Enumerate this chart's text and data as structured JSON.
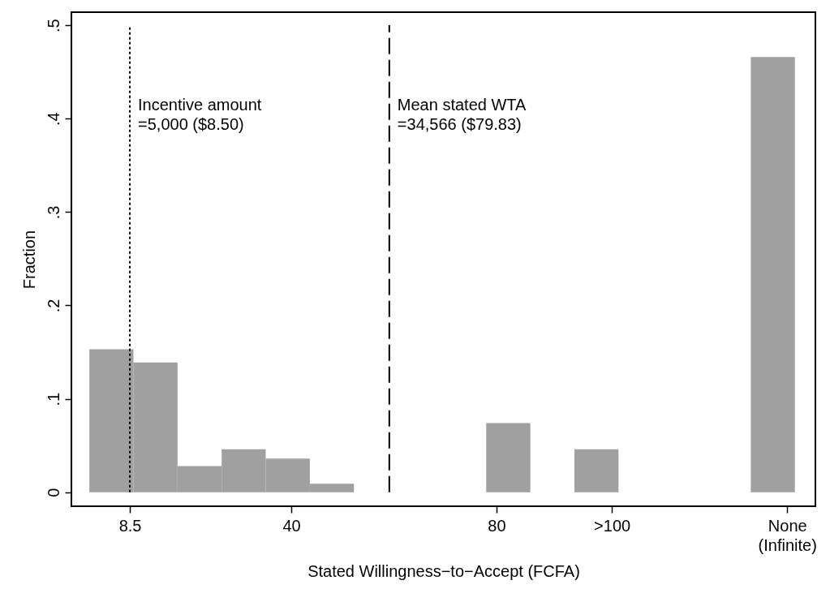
{
  "chart_data": {
    "type": "histogram",
    "xlabel": "Stated Willingness−to−Accept (FCFA)",
    "ylabel": "Fraction",
    "color": "#a0a0a0",
    "bins": [
      0.6,
      9.2,
      17.8,
      26.4,
      35,
      43.6,
      52.2,
      60.8,
      69.4,
      78,
      86.6,
      95.2,
      103.8,
      112.4,
      121,
      129.6,
      138.2
    ],
    "values": [
      0.153,
      0.139,
      0.028,
      0.046,
      0.036,
      0.009,
      0,
      0,
      0,
      0.074,
      0,
      0.046,
      0,
      0,
      0,
      0.466
    ],
    "xlim": [
      -2.9,
      142.2
    ],
    "ylim": [
      -0.015,
      0.514
    ],
    "xticks": [
      8.5,
      40,
      80,
      {
        "value": 102.5,
        "label": ">100"
      },
      {
        "value": 136.7,
        "label": "None\n(Infinite)"
      }
    ],
    "yticks": [
      0,
      {
        "value": 0.1,
        "label": ".1"
      },
      {
        "value": 0.2,
        "label": ".2"
      },
      {
        "value": 0.3,
        "label": ".3"
      },
      {
        "value": 0.4,
        "label": ".4"
      },
      {
        "value": 0.5,
        "label": ".5"
      }
    ],
    "grid": false,
    "annotations": [
      "Incentive amount\n=5,000 ($8.50)",
      "Mean stated WTA\n=34,566 ($79.83)"
    ],
    "ref_lines": [
      {
        "axis": "x",
        "value": 8.5,
        "line_style": "dotted",
        "color": "#000000"
      },
      {
        "axis": "x",
        "value": 59.1,
        "line_style": "dashed",
        "color": "#000000"
      }
    ]
  }
}
